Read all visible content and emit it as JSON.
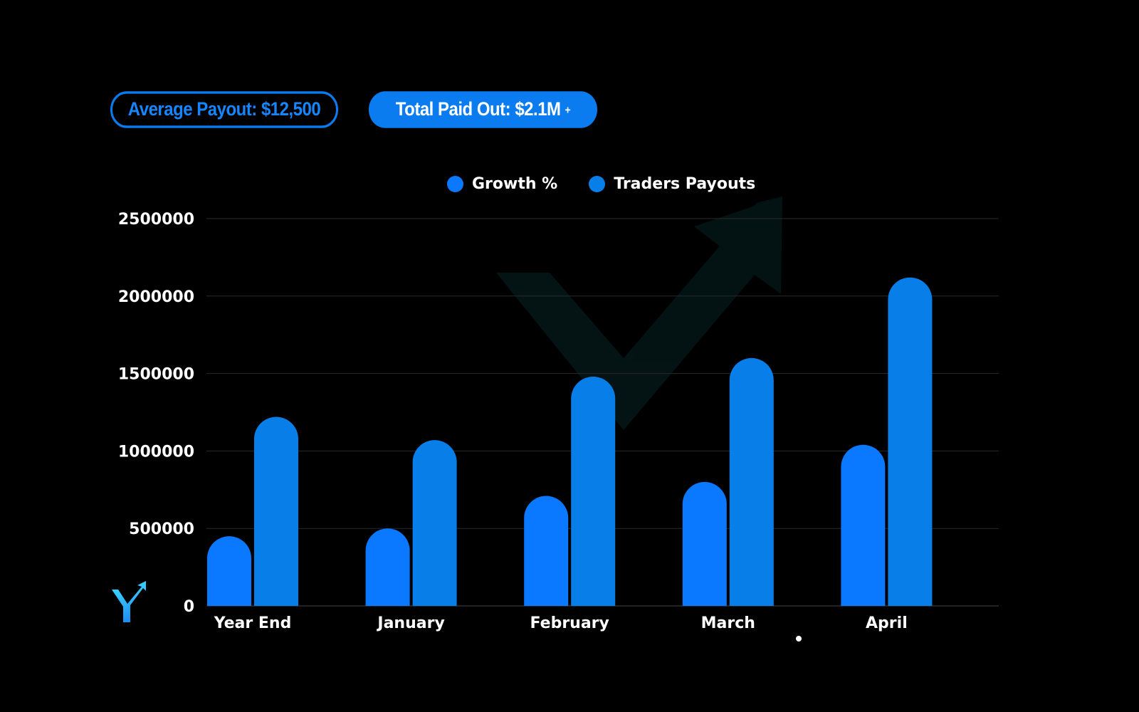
{
  "stats": {
    "average_label": "Average Payout: $12,500",
    "total_label": "Total Paid Out:  $2.1M",
    "total_suffix": "+"
  },
  "colors": {
    "background": "#000000",
    "growth": "#0a78ff",
    "payouts": "#087fe8",
    "grid": "#2a2a2a",
    "accent": "#0a7cf0"
  },
  "chart_data": {
    "type": "bar",
    "categories": [
      "Year End",
      "January",
      "February",
      "March",
      "April"
    ],
    "series": [
      {
        "name": "Growth %",
        "values": [
          450000,
          500000,
          710000,
          800000,
          1040000
        ]
      },
      {
        "name": "Traders Payouts",
        "values": [
          1220000,
          1070000,
          1480000,
          1600000,
          2120000
        ]
      }
    ],
    "yticks": [
      0,
      500000,
      1000000,
      1500000,
      2000000,
      2500000
    ],
    "ylim": [
      0,
      2500000
    ],
    "grid": true,
    "legend": "top-center"
  }
}
